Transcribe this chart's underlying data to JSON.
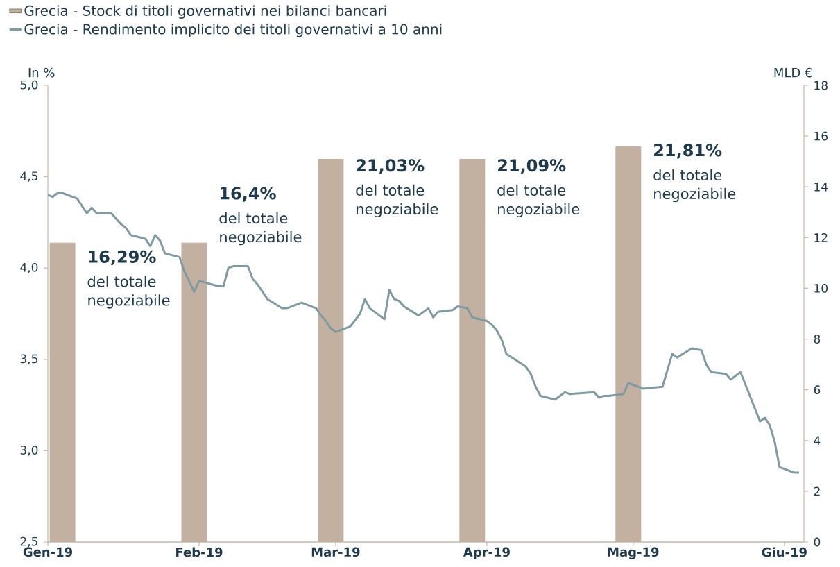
{
  "chart_data": {
    "type": "line",
    "ylabel": "In %",
    "y2label": "MLD €",
    "xlim": [
      "2019-01-01",
      "2019-06-05"
    ],
    "xticks": [
      {
        "value": "2019-01-01",
        "label": "Gen-19"
      },
      {
        "value": "2019-02-01",
        "label": "Feb-19"
      },
      {
        "value": "2019-03-01",
        "label": "Mar-19"
      },
      {
        "value": "2019-04-01",
        "label": "Apr-19"
      },
      {
        "value": "2019-05-01",
        "label": "Mag-19"
      },
      {
        "value": "2019-06-01",
        "label": "Giu-19"
      }
    ],
    "ylim": [
      2.5,
      5.0
    ],
    "yticks": [
      {
        "value": 2.5,
        "label": "2,5"
      },
      {
        "value": 3.0,
        "label": "3,0"
      },
      {
        "value": 3.5,
        "label": "3,5"
      },
      {
        "value": 4.0,
        "label": "4,0"
      },
      {
        "value": 4.5,
        "label": "4,5"
      },
      {
        "value": 5.0,
        "label": "5,0"
      }
    ],
    "y2lim": [
      0,
      18
    ],
    "y2ticks": [
      0,
      2,
      4,
      6,
      8,
      10,
      12,
      14,
      16,
      18
    ],
    "legend": "top left",
    "series": [
      {
        "name": "Grecia - Stock di titoli governativi nei bilanci bancari",
        "type": "bar",
        "axis": "y2",
        "color": "#c2b0a0",
        "x": [
          "2019-01-04",
          "2019-01-31",
          "2019-02-28",
          "2019-03-29",
          "2019-04-30"
        ],
        "values": [
          11.8,
          11.8,
          15.1,
          15.1,
          15.6
        ]
      },
      {
        "name": "Grecia - Rendimento implicito dei titoli governativi a 10 anni",
        "color": "#7f9aa1",
        "x": [
          "2019-01-01",
          "2019-01-02",
          "2019-01-03",
          "2019-01-04",
          "2019-01-07",
          "2019-01-09",
          "2019-01-10",
          "2019-01-11",
          "2019-01-14",
          "2019-01-16",
          "2019-01-17",
          "2019-01-18",
          "2019-01-21",
          "2019-01-22",
          "2019-01-23",
          "2019-01-24",
          "2019-01-25",
          "2019-01-28",
          "2019-01-29",
          "2019-01-31",
          "2019-02-01",
          "2019-02-05",
          "2019-02-06",
          "2019-02-07",
          "2019-02-08",
          "2019-02-11",
          "2019-02-12",
          "2019-02-13",
          "2019-02-15",
          "2019-02-18",
          "2019-02-19",
          "2019-02-22",
          "2019-02-25",
          "2019-02-26",
          "2019-02-27",
          "2019-02-28",
          "2019-03-01",
          "2019-03-04",
          "2019-03-06",
          "2019-03-07",
          "2019-03-08",
          "2019-03-11",
          "2019-03-12",
          "2019-03-13",
          "2019-03-14",
          "2019-03-15",
          "2019-03-18",
          "2019-03-19",
          "2019-03-20",
          "2019-03-21",
          "2019-03-22",
          "2019-03-25",
          "2019-03-26",
          "2019-03-28",
          "2019-03-29",
          "2019-04-01",
          "2019-04-02",
          "2019-04-03",
          "2019-04-04",
          "2019-04-05",
          "2019-04-09",
          "2019-04-10",
          "2019-04-11",
          "2019-04-12",
          "2019-04-15",
          "2019-04-16",
          "2019-04-17",
          "2019-04-18",
          "2019-04-23",
          "2019-04-24",
          "2019-04-25",
          "2019-04-26",
          "2019-04-29",
          "2019-04-30",
          "2019-05-03",
          "2019-05-07",
          "2019-05-09",
          "2019-05-10",
          "2019-05-13",
          "2019-05-15",
          "2019-05-16",
          "2019-05-17",
          "2019-05-20",
          "2019-05-21",
          "2019-05-22",
          "2019-05-23",
          "2019-05-27",
          "2019-05-28",
          "2019-05-29",
          "2019-05-30",
          "2019-05-31",
          "2019-06-03",
          "2019-06-04"
        ],
        "values": [
          4.4,
          4.39,
          4.41,
          4.41,
          4.38,
          4.3,
          4.33,
          4.3,
          4.3,
          4.24,
          4.22,
          4.18,
          4.16,
          4.12,
          4.18,
          4.15,
          4.08,
          4.06,
          3.98,
          3.87,
          3.93,
          3.9,
          3.9,
          4.0,
          4.01,
          4.01,
          3.94,
          3.91,
          3.83,
          3.78,
          3.78,
          3.81,
          3.78,
          3.74,
          3.71,
          3.67,
          3.65,
          3.68,
          3.75,
          3.83,
          3.78,
          3.72,
          3.88,
          3.83,
          3.82,
          3.79,
          3.74,
          3.76,
          3.78,
          3.73,
          3.76,
          3.77,
          3.79,
          3.78,
          3.73,
          3.71,
          3.69,
          3.66,
          3.61,
          3.53,
          3.46,
          3.42,
          3.35,
          3.3,
          3.28,
          3.3,
          3.32,
          3.31,
          3.32,
          3.29,
          3.3,
          3.3,
          3.31,
          3.37,
          3.34,
          3.35,
          3.53,
          3.51,
          3.56,
          3.55,
          3.47,
          3.43,
          3.42,
          3.39,
          3.41,
          3.43,
          3.16,
          3.18,
          3.14,
          3.05,
          2.91,
          2.88,
          2.88
        ]
      }
    ],
    "annotations": [
      "16,29%",
      "del totale negoziabile",
      "16,4%",
      "del totale negoziabile",
      "21,03%",
      "del totale negoziabile",
      "21,09%",
      "del totale negoziabile",
      "21,81%",
      "del totale negoziabile"
    ]
  }
}
